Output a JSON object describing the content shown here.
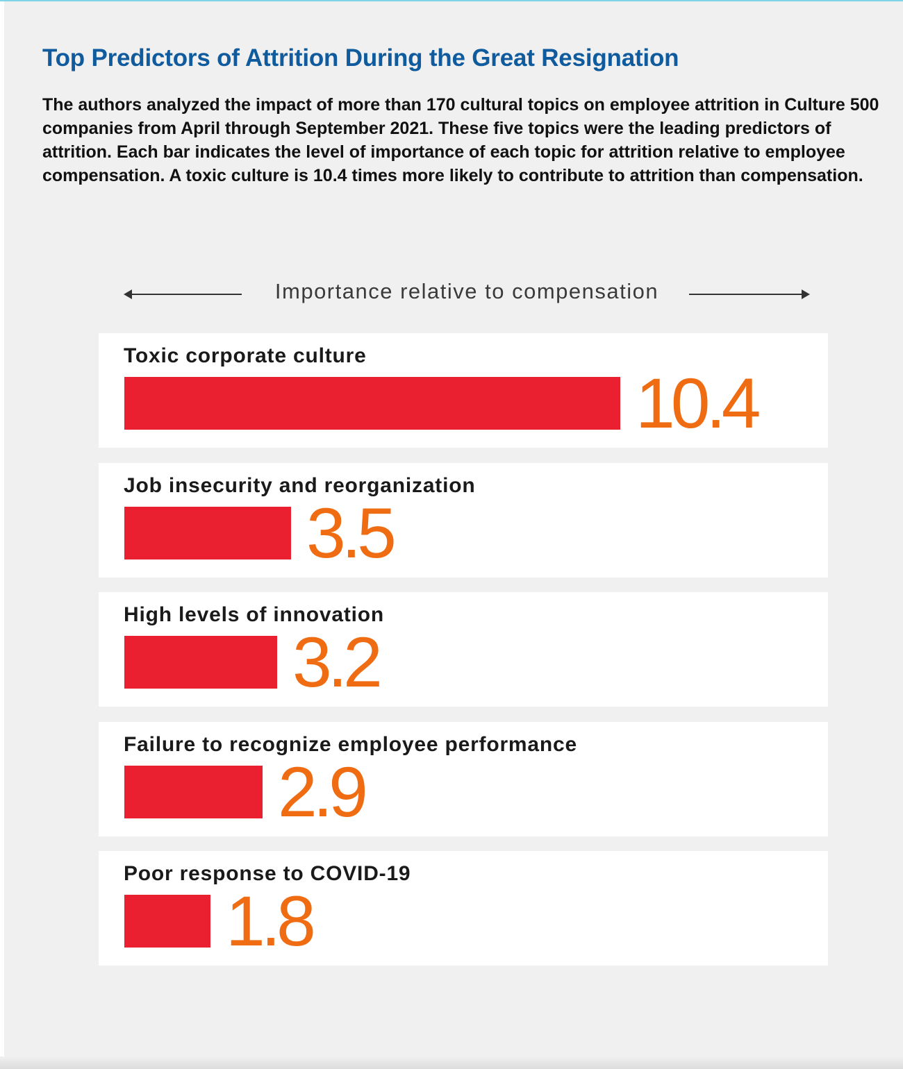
{
  "colors": {
    "title": "#0f5b9d",
    "bar": "#ea1f30",
    "value": "#ef6c12",
    "panel_background": "#f0f0f0",
    "row_background": "#ffffff"
  },
  "header": {
    "title": "Top Predictors of Attrition During the Great Resignation",
    "description": "The authors analyzed the impact of more than 170 cultural topics on employee attrition in Culture 500 companies from April through September 2021. These five topics were the leading predictors of attrition. Each bar indicates the level of importance of each topic for attrition relative to employee compensation. A toxic culture is 10.4 times more likely to contribute to attrition than compensation."
  },
  "chart_data": {
    "type": "bar",
    "orientation": "horizontal",
    "axis_label": "Importance relative to compensation",
    "categories": [
      "Toxic corporate culture",
      "Job insecurity and reorganization",
      "High levels of innovation",
      "Failure to recognize employee performance",
      "Poor response to COVID-19"
    ],
    "values": [
      10.4,
      3.5,
      3.2,
      2.9,
      1.8
    ],
    "value_labels": [
      "10.4",
      "3.5",
      "3.2",
      "2.9",
      "1.8"
    ],
    "xlim": [
      0,
      10.4
    ],
    "grid": false,
    "legend": "none"
  }
}
